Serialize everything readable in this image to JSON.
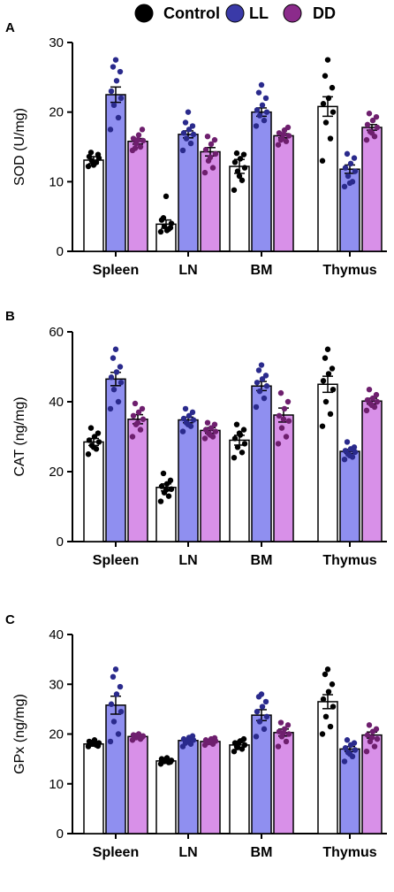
{
  "legend": [
    {
      "name": "Control",
      "fill": "#000000"
    },
    {
      "name": "LL",
      "fill": "#3a3aa8"
    },
    {
      "name": "DD",
      "fill": "#8b2b8b"
    }
  ],
  "series_style": {
    "Control": {
      "bar": "#ffffff",
      "dot": "#000000"
    },
    "LL": {
      "bar": "#8f8ff0",
      "dot": "#2a2a8c"
    },
    "DD": {
      "bar": "#d890e8",
      "dot": "#6e1f6e"
    }
  },
  "chart_data": [
    {
      "type": "bar",
      "panel": "A",
      "categories": [
        "Spleen",
        "LN",
        "BM",
        "Thymus"
      ],
      "ylabel": "SOD (U/mg)",
      "ylim": [
        0,
        30
      ],
      "yticks": [
        0,
        10,
        20,
        30
      ],
      "series": [
        {
          "name": "Control",
          "values": [
            13.1,
            3.9,
            12.2,
            20.8
          ],
          "sem": [
            0.5,
            0.6,
            1.0,
            1.4
          ],
          "points": [
            [
              12.2,
              12.8,
              13.0,
              13.4,
              13.6,
              12.6,
              13.9,
              14.2,
              12.4
            ],
            [
              2.8,
              3.2,
              3.6,
              4.0,
              4.5,
              3.0,
              3.4,
              4.8,
              7.9
            ],
            [
              8.8,
              10.2,
              11.5,
              12.0,
              12.8,
              13.3,
              13.9,
              14.1,
              10.8
            ],
            [
              13.0,
              16.2,
              18.5,
              20.0,
              21.2,
              22.0,
              23.5,
              25.2,
              27.5
            ]
          ]
        },
        {
          "name": "LL",
          "values": [
            22.5,
            16.8,
            20.0,
            11.8
          ],
          "sem": [
            1.1,
            0.5,
            0.6,
            0.6
          ],
          "points": [
            [
              17.5,
              19.2,
              21.0,
              22.0,
              23.0,
              24.5,
              25.8,
              26.5,
              27.5
            ],
            [
              14.5,
              15.5,
              16.2,
              16.8,
              17.0,
              17.5,
              18.0,
              18.5,
              20.0
            ],
            [
              18.0,
              18.8,
              19.5,
              20.0,
              20.3,
              21.0,
              22.0,
              22.8,
              23.9
            ],
            [
              9.3,
              10.0,
              10.8,
              11.5,
              12.0,
              12.6,
              13.4,
              14.0,
              9.8
            ]
          ]
        },
        {
          "name": "DD",
          "values": [
            15.8,
            14.3,
            16.6,
            17.8
          ],
          "sem": [
            0.4,
            0.6,
            0.3,
            0.4
          ],
          "points": [
            [
              14.5,
              15.0,
              15.5,
              15.9,
              16.2,
              16.7,
              17.5,
              14.8,
              16.0
            ],
            [
              11.3,
              12.0,
              13.0,
              14.0,
              14.6,
              15.4,
              16.0,
              16.5,
              13.5
            ],
            [
              15.3,
              15.8,
              16.2,
              16.6,
              17.0,
              17.4,
              17.8,
              16.0,
              16.8
            ],
            [
              16.0,
              16.5,
              17.2,
              17.8,
              18.2,
              18.8,
              19.3,
              19.8,
              17.0
            ]
          ]
        }
      ]
    },
    {
      "type": "bar",
      "panel": "B",
      "categories": [
        "Spleen",
        "LN",
        "BM",
        "Thymus"
      ],
      "ylabel": "CAT (ng/mg)",
      "ylim": [
        0,
        60
      ],
      "yticks": [
        0,
        20,
        40,
        60
      ],
      "series": [
        {
          "name": "Control",
          "values": [
            28.5,
            15.5,
            29.0,
            45.0
          ],
          "sem": [
            1.0,
            1.0,
            1.4,
            2.3
          ],
          "points": [
            [
              25.0,
              26.5,
              27.5,
              28.5,
              29.0,
              30.0,
              31.0,
              32.5,
              27.0
            ],
            [
              11.5,
              13.0,
              14.0,
              15.0,
              15.8,
              16.5,
              17.5,
              19.5,
              14.8
            ],
            [
              24.0,
              25.5,
              27.0,
              28.0,
              29.5,
              30.5,
              32.0,
              33.5,
              31.0
            ],
            [
              33.0,
              36.5,
              40.0,
              43.5,
              46.0,
              48.0,
              49.5,
              52.5,
              55.0
            ]
          ]
        },
        {
          "name": "LL",
          "values": [
            46.5,
            34.8,
            44.5,
            25.8
          ],
          "sem": [
            1.9,
            0.8,
            1.3,
            0.6
          ],
          "points": [
            [
              38.0,
              40.0,
              43.5,
              45.5,
              47.0,
              48.5,
              50.0,
              52.5,
              55.0
            ],
            [
              31.5,
              33.0,
              34.0,
              34.8,
              35.2,
              36.0,
              37.0,
              38.0,
              33.5
            ],
            [
              38.5,
              41.0,
              43.0,
              44.5,
              45.5,
              46.5,
              47.5,
              49.0,
              50.5
            ],
            [
              23.5,
              24.2,
              25.0,
              25.6,
              26.0,
              26.5,
              27.0,
              28.5,
              24.6
            ]
          ]
        },
        {
          "name": "DD",
          "values": [
            35.0,
            31.8,
            36.2,
            40.2
          ],
          "sem": [
            1.3,
            0.8,
            2.0,
            0.8
          ],
          "points": [
            [
              30.0,
              32.0,
              33.5,
              35.0,
              36.0,
              37.0,
              38.0,
              39.5,
              34.0
            ],
            [
              29.5,
              30.0,
              31.0,
              31.5,
              32.0,
              32.5,
              33.5,
              34.0,
              30.5
            ],
            [
              28.0,
              30.0,
              32.5,
              34.5,
              36.0,
              38.0,
              40.0,
              42.5,
              35.0
            ],
            [
              37.5,
              38.5,
              39.5,
              40.0,
              40.5,
              41.0,
              42.0,
              43.5,
              39.0
            ]
          ]
        }
      ]
    },
    {
      "type": "bar",
      "panel": "C",
      "categories": [
        "Spleen",
        "LN",
        "BM",
        "Thymus"
      ],
      "ylabel": "GPx (ng/mg)",
      "ylim": [
        0,
        40
      ],
      "yticks": [
        0,
        10,
        20,
        30,
        40
      ],
      "series": [
        {
          "name": "Control",
          "values": [
            18.0,
            14.6,
            17.8,
            26.5
          ],
          "sem": [
            0.3,
            0.3,
            0.5,
            1.4
          ],
          "points": [
            [
              17.5,
              17.8,
              18.0,
              18.2,
              18.5,
              18.8,
              17.6,
              18.3,
              18.0
            ],
            [
              14.0,
              14.3,
              14.5,
              14.7,
              15.0,
              15.2,
              14.4,
              14.8,
              14.6
            ],
            [
              16.5,
              17.0,
              17.3,
              17.8,
              18.2,
              18.6,
              19.0,
              17.5,
              18.4
            ],
            [
              20.0,
              21.5,
              23.5,
              25.5,
              27.0,
              28.5,
              30.0,
              32.0,
              33.0
            ]
          ]
        },
        {
          "name": "LL",
          "values": [
            25.8,
            18.7,
            23.8,
            17.0
          ],
          "sem": [
            1.8,
            0.3,
            1.1,
            0.5
          ],
          "points": [
            [
              18.5,
              20.0,
              22.5,
              24.5,
              26.0,
              28.0,
              29.5,
              31.5,
              33.0
            ],
            [
              17.5,
              18.0,
              18.5,
              18.8,
              19.0,
              19.3,
              19.6,
              18.2,
              18.9
            ],
            [
              19.5,
              21.0,
              22.5,
              23.5,
              24.5,
              25.5,
              26.5,
              27.5,
              28.0
            ],
            [
              14.5,
              15.5,
              16.3,
              16.8,
              17.2,
              17.8,
              18.2,
              18.8,
              16.0
            ]
          ]
        },
        {
          "name": "DD",
          "values": [
            19.5,
            18.5,
            20.3,
            19.8
          ],
          "sem": [
            0.3,
            0.3,
            0.7,
            0.6
          ],
          "points": [
            [
              18.8,
              19.0,
              19.3,
              19.6,
              19.8,
              20.0,
              19.4,
              19.7,
              19.5
            ],
            [
              17.8,
              18.0,
              18.3,
              18.6,
              18.8,
              19.0,
              19.2,
              18.5,
              18.4
            ],
            [
              17.5,
              18.5,
              19.5,
              20.0,
              20.5,
              21.0,
              21.8,
              22.3,
              20.2
            ],
            [
              16.5,
              17.5,
              18.5,
              19.0,
              19.8,
              20.5,
              21.0,
              21.8,
              19.3
            ]
          ]
        }
      ]
    }
  ]
}
